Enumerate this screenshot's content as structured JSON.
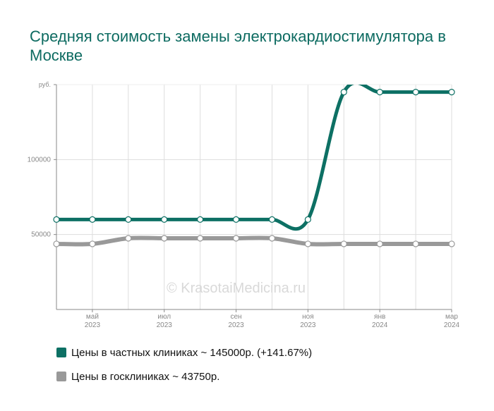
{
  "title": "Средняя стоимость замены электрокардиостимулятора в Москве",
  "watermark": "© KrasotaiMedicina.ru",
  "colors": {
    "private": "#0d7064",
    "public": "#999999",
    "title": "#0d6b61",
    "grid": "#dddddd",
    "axis": "#888888"
  },
  "chart_data": {
    "type": "line",
    "title": "Средняя стоимость замены электрокардиостимулятора в Москве",
    "xlabel": "",
    "ylabel": "",
    "y_unit_label": "руб.",
    "ylim": [
      0,
      150000
    ],
    "y_ticks": [
      {
        "value": 50000,
        "label": "50000"
      },
      {
        "value": 100000,
        "label": "100000"
      }
    ],
    "x": [
      "2023-04",
      "2023-05",
      "2023-06",
      "2023-07",
      "2023-08",
      "2023-09",
      "2023-10",
      "2023-11",
      "2023-12",
      "2024-01",
      "2024-02",
      "2024-03"
    ],
    "x_ticks": [
      {
        "month": "май",
        "year": "2023"
      },
      {
        "month": "июл",
        "year": "2023"
      },
      {
        "month": "сен",
        "year": "2023"
      },
      {
        "month": "ноя",
        "year": "2023"
      },
      {
        "month": "янв",
        "year": "2024"
      },
      {
        "month": "мар",
        "year": "2024"
      }
    ],
    "grid": true,
    "legend_position": "bottom",
    "series": [
      {
        "name": "Цены в частных клиниках",
        "values": [
          60000,
          60000,
          60000,
          60000,
          60000,
          60000,
          60000,
          60000,
          145000,
          145000,
          145000,
          145000
        ]
      },
      {
        "name": "Цены в госклиниках",
        "values": [
          43750,
          43750,
          47500,
          47500,
          47500,
          47500,
          47500,
          43750,
          43750,
          43750,
          43750,
          43750
        ]
      }
    ]
  },
  "legend": [
    {
      "label": "Цены в частных клиниках ~ 145000р. (+141.67%)"
    },
    {
      "label": "Цены в госклиниках ~ 43750р."
    }
  ]
}
